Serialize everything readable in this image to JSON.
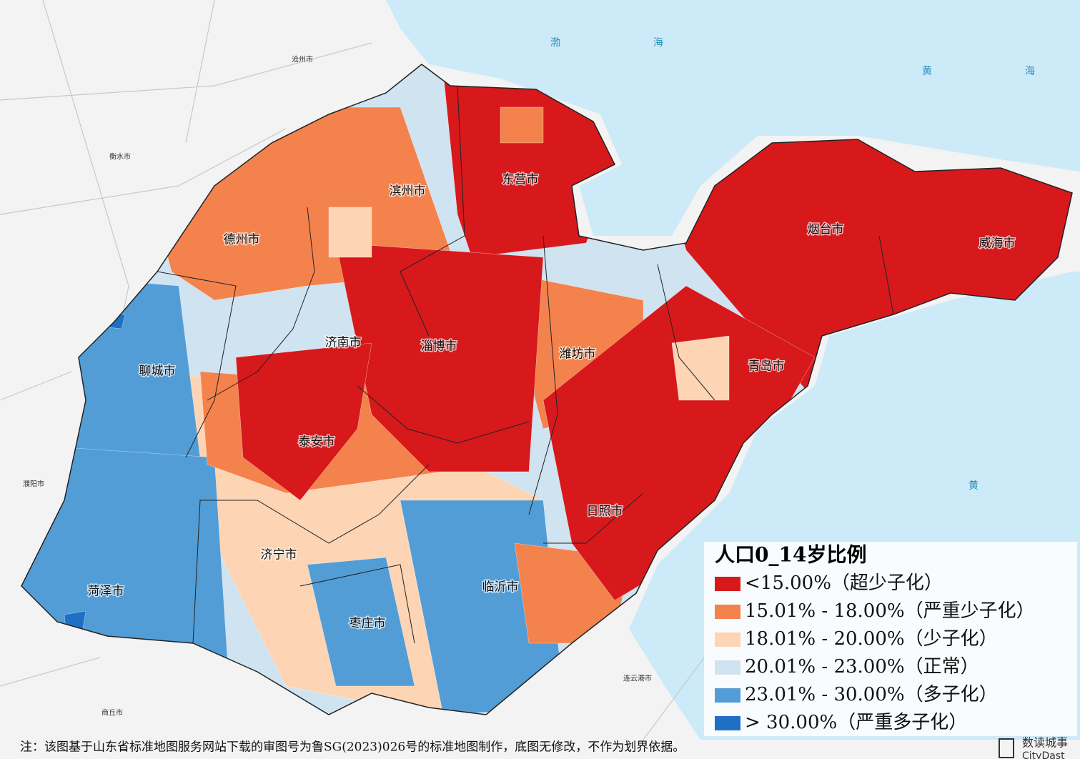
{
  "map": {
    "seas": [
      "渤海",
      "黄海",
      "黄"
    ],
    "neighbors": [
      "沧州市",
      "衡水市",
      "濮阳市",
      "商丘市",
      "连云港市"
    ],
    "cities": [
      "东营市",
      "滨州市",
      "德州市",
      "烟台市",
      "威海市",
      "济南市",
      "淄博市",
      "潍坊市",
      "青岛市",
      "聊城市",
      "泰安市",
      "日照市",
      "济宁市",
      "菏泽市",
      "临沂市",
      "枣庄市"
    ],
    "legend": {
      "title": "人口0_14岁比例",
      "classes": [
        {
          "label": "<15.00%（超少子化）",
          "color": "#d7191c"
        },
        {
          "label": "15.01% - 18.00%（严重少子化）",
          "color": "#f4824d"
        },
        {
          "label": "18.01% - 20.00%（少子化）",
          "color": "#fdd4b4"
        },
        {
          "label": "20.01% - 23.00%（正常）",
          "color": "#cfe3f1"
        },
        {
          "label": "23.01% - 30.00%（多子化）",
          "color": "#529dd6"
        },
        {
          "label": "> 30.00%（严重多子化）",
          "color": "#1f6fc4"
        }
      ]
    },
    "note": "注：该图基于山东省标准地图服务网站下载的审图号为鲁SG(2023)026号的标准地图制作，底图无修改，不作为划界依据。",
    "brand": "数读城事",
    "brand_en": "CityDast"
  }
}
